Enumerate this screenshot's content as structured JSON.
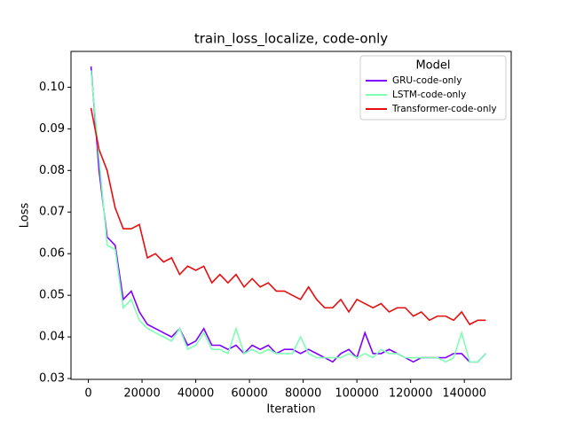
{
  "chart_data": {
    "type": "line",
    "title": "train_loss_localize, code-only",
    "x_label": "Iteration",
    "y_label": "Loss",
    "x": [
      1000,
      4000,
      7000,
      10000,
      13000,
      16000,
      19000,
      22000,
      25000,
      28000,
      31000,
      34000,
      37000,
      40000,
      43000,
      46000,
      49000,
      52000,
      55000,
      58000,
      61000,
      64000,
      67000,
      70000,
      73000,
      76000,
      79000,
      82000,
      85000,
      88000,
      91000,
      94000,
      97000,
      100000,
      103000,
      106000,
      109000,
      112000,
      115000,
      118000,
      121000,
      124000,
      127000,
      130000,
      133000,
      136000,
      139000,
      142000,
      145000,
      148000
    ],
    "series": [
      {
        "name": "GRU-code-only",
        "color": "#8000ff",
        "values": [
          0.105,
          0.08,
          0.064,
          0.062,
          0.049,
          0.051,
          0.046,
          0.043,
          0.042,
          0.041,
          0.04,
          0.042,
          0.038,
          0.039,
          0.042,
          0.038,
          0.038,
          0.037,
          0.038,
          0.036,
          0.038,
          0.037,
          0.038,
          0.036,
          0.037,
          0.037,
          0.036,
          0.037,
          0.036,
          0.035,
          0.034,
          0.036,
          0.037,
          0.035,
          0.041,
          0.036,
          0.036,
          0.037,
          0.036,
          0.035,
          0.034,
          0.035,
          0.035,
          0.035,
          0.035,
          0.036,
          0.036,
          0.034,
          0.034,
          0.036
        ]
      },
      {
        "name": "LSTM-code-only",
        "color": "#80ffb4",
        "values": [
          0.104,
          0.083,
          0.062,
          0.061,
          0.047,
          0.049,
          0.044,
          0.042,
          0.041,
          0.04,
          0.039,
          0.042,
          0.037,
          0.038,
          0.041,
          0.037,
          0.037,
          0.036,
          0.042,
          0.036,
          0.037,
          0.036,
          0.037,
          0.036,
          0.036,
          0.036,
          0.04,
          0.036,
          0.035,
          0.035,
          0.035,
          0.035,
          0.036,
          0.035,
          0.036,
          0.035,
          0.037,
          0.036,
          0.036,
          0.035,
          0.035,
          0.035,
          0.035,
          0.035,
          0.034,
          0.035,
          0.041,
          0.034,
          0.034,
          0.036
        ]
      },
      {
        "name": "Transformer-code-only",
        "color": "#e60f0f",
        "values": [
          0.095,
          0.085,
          0.08,
          0.071,
          0.066,
          0.066,
          0.067,
          0.059,
          0.06,
          0.058,
          0.059,
          0.055,
          0.057,
          0.056,
          0.057,
          0.053,
          0.055,
          0.053,
          0.055,
          0.052,
          0.054,
          0.052,
          0.053,
          0.051,
          0.051,
          0.05,
          0.049,
          0.052,
          0.049,
          0.047,
          0.047,
          0.049,
          0.046,
          0.049,
          0.048,
          0.047,
          0.048,
          0.046,
          0.047,
          0.047,
          0.045,
          0.046,
          0.044,
          0.045,
          0.045,
          0.044,
          0.046,
          0.043,
          0.044,
          0.044
        ]
      }
    ],
    "xlim": [
      -6450,
      157450
    ],
    "ylim": [
      0.0298,
      0.1086
    ],
    "xticks": [
      0,
      20000,
      40000,
      60000,
      80000,
      100000,
      120000,
      140000
    ],
    "yticks": [
      0.03,
      0.04,
      0.05,
      0.06,
      0.07,
      0.08,
      0.09,
      {
        "value": 0.1,
        "label": "0.10"
      }
    ],
    "legend_title": "Model",
    "legend_position": "upper-right",
    "grid": false
  }
}
